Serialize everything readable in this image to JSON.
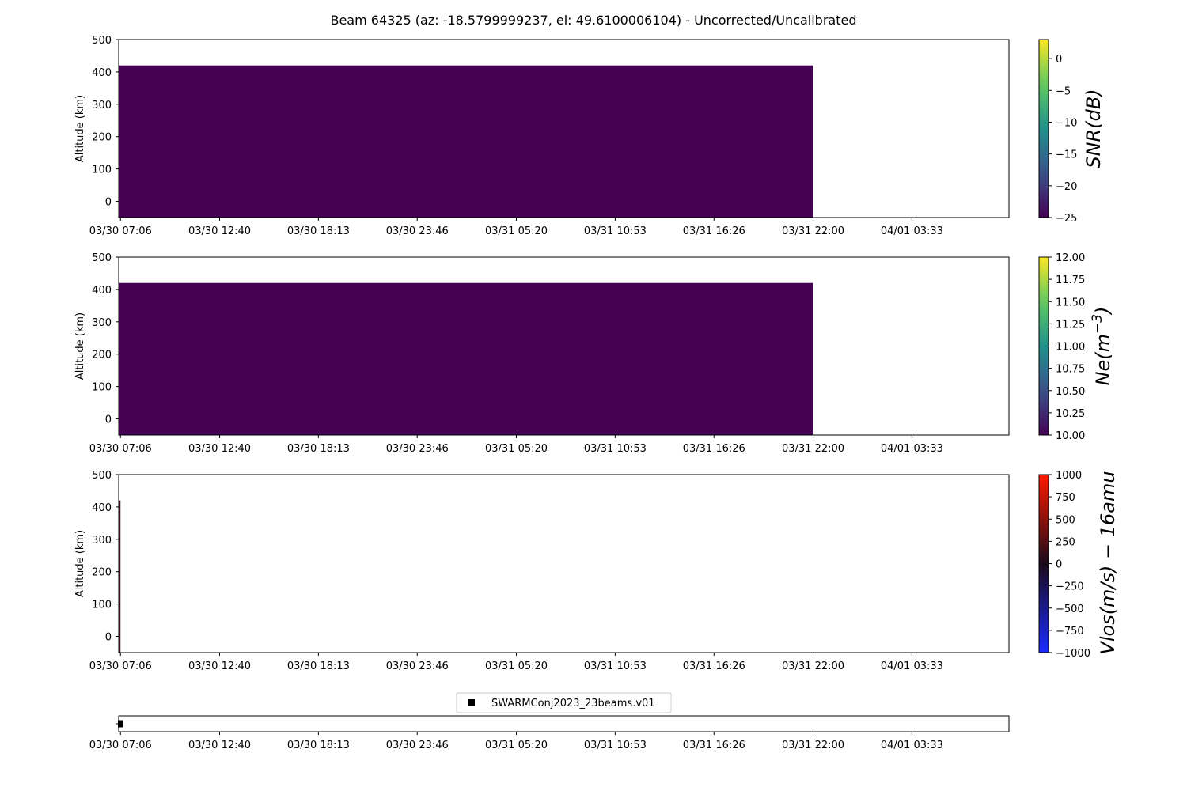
{
  "figure": {
    "title": "Beam 64325 (az: -18.5799999237, el: 49.6100006104) - Uncorrected/Uncalibrated"
  },
  "chart_data": [
    {
      "type": "heatmap",
      "id": "snr",
      "ylabel": "Altitude (km)",
      "xlabel": "",
      "yticks": [
        0,
        100,
        200,
        300,
        400,
        500
      ],
      "ylim": [
        -50,
        500
      ],
      "xticks": [
        "03/30 07:06",
        "03/30 12:40",
        "03/30 18:13",
        "03/30 23:46",
        "03/31 05:20",
        "03/31 10:53",
        "03/31 16:26",
        "03/31 22:00",
        "04/01 03:33"
      ],
      "xlim": [
        "03/30 07:00",
        "04/01 09:00"
      ],
      "data_extent": {
        "x": [
          "03/30 07:00",
          "03/31 22:00"
        ],
        "y": [
          -50,
          420
        ]
      },
      "fill_value": -25,
      "colorbar": {
        "label": "SNR(dB)",
        "colormap": "viridis",
        "range": [
          -25,
          3
        ],
        "ticks": [
          0,
          -5,
          -10,
          -15,
          -20,
          -25
        ],
        "tick_labels": [
          "0",
          "−5",
          "−10",
          "−15",
          "−20",
          "−25"
        ]
      }
    },
    {
      "type": "heatmap",
      "id": "ne",
      "ylabel": "Altitude (km)",
      "xlabel": "",
      "yticks": [
        0,
        100,
        200,
        300,
        400,
        500
      ],
      "ylim": [
        -50,
        500
      ],
      "xticks": [
        "03/30 07:06",
        "03/30 12:40",
        "03/30 18:13",
        "03/30 23:46",
        "03/31 05:20",
        "03/31 10:53",
        "03/31 16:26",
        "03/31 22:00",
        "04/01 03:33"
      ],
      "xlim": [
        "03/30 07:00",
        "04/01 09:00"
      ],
      "data_extent": {
        "x": [
          "03/30 07:00",
          "03/31 22:00"
        ],
        "y": [
          -50,
          420
        ]
      },
      "fill_value": 10.0,
      "colorbar": {
        "label_main": "Ne(m",
        "label_sup": "−3",
        "label_end": ")",
        "colormap": "viridis",
        "range": [
          10.0,
          12.0
        ],
        "ticks": [
          12.0,
          11.75,
          11.5,
          11.25,
          11.0,
          10.75,
          10.5,
          10.25,
          10.0
        ],
        "tick_labels": [
          "12.00",
          "11.75",
          "11.50",
          "11.25",
          "11.00",
          "10.75",
          "10.50",
          "10.25",
          "10.00"
        ]
      }
    },
    {
      "type": "heatmap",
      "id": "vlos",
      "ylabel": "Altitude (km)",
      "xlabel": "",
      "yticks": [
        0,
        100,
        200,
        300,
        400,
        500
      ],
      "ylim": [
        -50,
        500
      ],
      "xticks": [
        "03/30 07:06",
        "03/30 12:40",
        "03/30 18:13",
        "03/30 23:46",
        "03/31 05:20",
        "03/31 10:53",
        "03/31 16:26",
        "03/31 22:00",
        "04/01 03:33"
      ],
      "xlim": [
        "03/30 07:00",
        "04/01 09:00"
      ],
      "data_extent": {
        "x": [
          "03/30 07:00",
          "03/30 07:06"
        ],
        "y": [
          -50,
          420
        ]
      },
      "colorbar": {
        "label": "Vlos(m/s) − 16amu",
        "colormap": "blue-black-red",
        "range": [
          -1000,
          1000
        ],
        "ticks": [
          1000,
          750,
          500,
          250,
          0,
          -250,
          -500,
          -750,
          -1000
        ],
        "tick_labels": [
          "1000",
          "750",
          "500",
          "250",
          "0",
          "−250",
          "−500",
          "−750",
          "−1000"
        ]
      }
    },
    {
      "type": "scatter",
      "id": "experiments",
      "xticks": [
        "03/30 07:06",
        "03/30 12:40",
        "03/30 18:13",
        "03/30 23:46",
        "03/31 05:20",
        "03/31 10:53",
        "03/31 16:26",
        "03/31 22:00",
        "04/01 03:33"
      ],
      "xlim": [
        "03/30 07:00",
        "04/01 09:00"
      ],
      "series": [
        {
          "name": "SWARMConj2023_23beams.v01",
          "x": [
            "03/30 07:00"
          ],
          "marker": "square"
        }
      ],
      "legend": "top-center"
    }
  ],
  "colors": {
    "viridis_low": "#440154",
    "viridis_high": "#fde725",
    "vlos_neg": "#1a2bff",
    "vlos_zero": "#1a0a1a",
    "vlos_pos": "#ff1a00",
    "marker": "#000000"
  }
}
